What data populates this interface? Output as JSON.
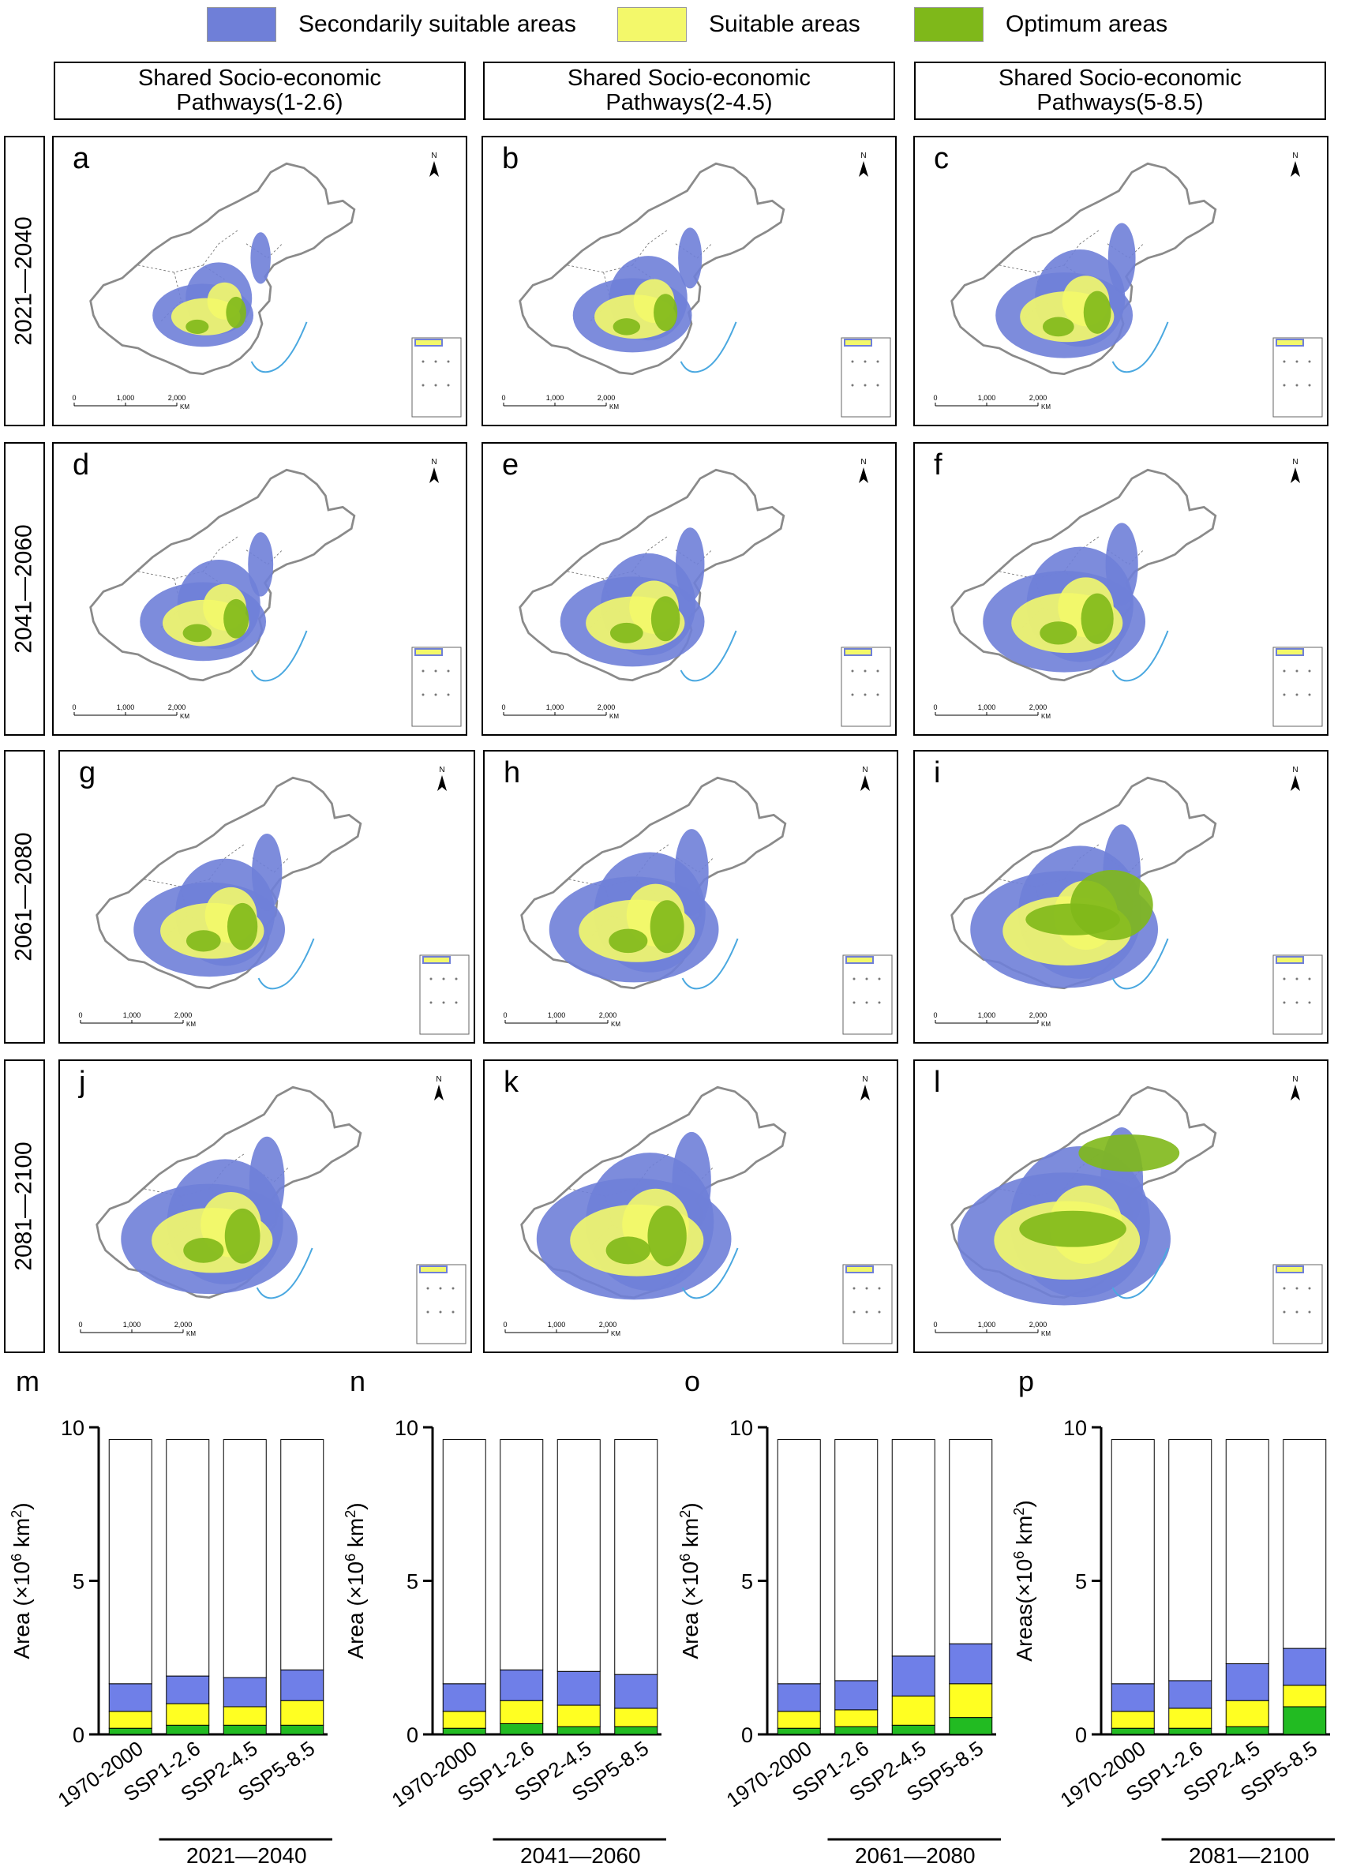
{
  "legend": [
    {
      "label": "Secondarily suitable areas",
      "color": "#6f7fd8"
    },
    {
      "label": "Suitable areas",
      "color": "#f3f86a"
    },
    {
      "label": "Optimum areas",
      "color": "#7fb81a"
    }
  ],
  "columns": [
    "Shared Socio-economic\nPathways(1-2.6)",
    "Shared Socio-economic\nPathways(2-4.5)",
    "Shared Socio-economic\nPathways(5-8.5)"
  ],
  "rows": [
    "2021—2040",
    "2041—2060",
    "2061—2080",
    "2081—2100"
  ],
  "map_panels": [
    "a",
    "b",
    "c",
    "d",
    "e",
    "f",
    "g",
    "h",
    "i",
    "j",
    "k",
    "l"
  ],
  "map_scale": {
    "ticks": [
      "0",
      "1,000",
      "2,000"
    ],
    "unit": "KM",
    "north": "N"
  },
  "chart_colors": {
    "other": "#ffffff",
    "secondarily": "#6f7fe8",
    "suitable": "#ffff22",
    "optimum": "#22bb22"
  },
  "chart_data": [
    {
      "type": "bar",
      "stacked": true,
      "letter": "m",
      "period": "2021—2040",
      "ylabel": "Area (×10",
      "ylabel_sup": "6",
      "ylabel_tail": " km",
      "ylabel_sup2": "2",
      "ylabel_close": ")",
      "ylim": [
        0,
        10
      ],
      "yticks": [
        "0",
        "5",
        "10"
      ],
      "categories": [
        "1970-2000",
        "SSP1-2.6",
        "SSP2-4.5",
        "SSP5-8.5"
      ],
      "series": [
        {
          "key": "optimum",
          "values": [
            0.2,
            0.3,
            0.3,
            0.3
          ]
        },
        {
          "key": "suitable",
          "values": [
            0.55,
            0.7,
            0.6,
            0.8
          ]
        },
        {
          "key": "secondarily",
          "values": [
            0.9,
            0.9,
            0.95,
            1.0
          ]
        },
        {
          "key": "other",
          "values": [
            7.95,
            7.7,
            7.75,
            7.5
          ]
        }
      ]
    },
    {
      "type": "bar",
      "stacked": true,
      "letter": "n",
      "period": "2041—2060",
      "ylabel": "Area (×10",
      "ylabel_sup": "6",
      "ylabel_tail": " km",
      "ylabel_sup2": "2",
      "ylabel_close": ")",
      "ylim": [
        0,
        10
      ],
      "yticks": [
        "0",
        "5",
        "10"
      ],
      "categories": [
        "1970-2000",
        "SSP1-2.6",
        "SSP2-4.5",
        "SSP5-8.5"
      ],
      "series": [
        {
          "key": "optimum",
          "values": [
            0.2,
            0.35,
            0.25,
            0.25
          ]
        },
        {
          "key": "suitable",
          "values": [
            0.55,
            0.75,
            0.7,
            0.6
          ]
        },
        {
          "key": "secondarily",
          "values": [
            0.9,
            1.0,
            1.1,
            1.1
          ]
        },
        {
          "key": "other",
          "values": [
            7.95,
            7.5,
            7.55,
            7.65
          ]
        }
      ]
    },
    {
      "type": "bar",
      "stacked": true,
      "letter": "o",
      "period": "2061—2080",
      "ylabel": "Area (×10",
      "ylabel_sup": "6",
      "ylabel_tail": " km",
      "ylabel_sup2": "2",
      "ylabel_close": ")",
      "ylim": [
        0,
        10
      ],
      "yticks": [
        "0",
        "5",
        "10"
      ],
      "categories": [
        "1970-2000",
        "SSP1-2.6",
        "SSP2-4.5",
        "SSP5-8.5"
      ],
      "series": [
        {
          "key": "optimum",
          "values": [
            0.2,
            0.25,
            0.3,
            0.55
          ]
        },
        {
          "key": "suitable",
          "values": [
            0.55,
            0.55,
            0.95,
            1.1
          ]
        },
        {
          "key": "secondarily",
          "values": [
            0.9,
            0.95,
            1.3,
            1.3
          ]
        },
        {
          "key": "other",
          "values": [
            7.95,
            7.85,
            7.05,
            6.65
          ]
        }
      ]
    },
    {
      "type": "bar",
      "stacked": true,
      "letter": "p",
      "period": "2081—2100",
      "ylabel": "Areas(×10",
      "ylabel_sup": "6",
      "ylabel_tail": " km",
      "ylabel_sup2": "2",
      "ylabel_close": ")",
      "ylim": [
        0,
        10
      ],
      "yticks": [
        "0",
        "5",
        "10"
      ],
      "categories": [
        "1970-2000",
        "SSP1-2.6",
        "SSP2-4.5",
        "SSP5-8.5"
      ],
      "series": [
        {
          "key": "optimum",
          "values": [
            0.2,
            0.2,
            0.25,
            0.9
          ]
        },
        {
          "key": "suitable",
          "values": [
            0.55,
            0.65,
            0.85,
            0.7
          ]
        },
        {
          "key": "secondarily",
          "values": [
            0.9,
            0.9,
            1.2,
            1.2
          ]
        },
        {
          "key": "other",
          "values": [
            7.95,
            7.85,
            7.3,
            6.8
          ]
        }
      ]
    }
  ]
}
